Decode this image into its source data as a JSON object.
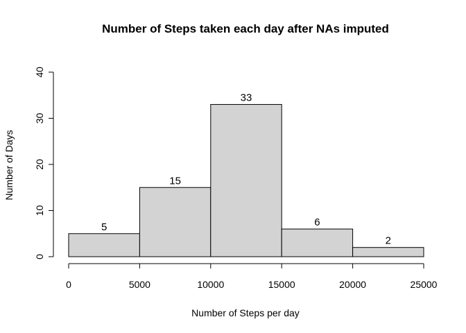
{
  "chart_data": {
    "type": "bar",
    "title": "Number of Steps taken each day after NAs imputed",
    "xlabel": "Number of Steps per day",
    "ylabel": "Number of Days",
    "bins": [
      [
        0,
        5000
      ],
      [
        5000,
        10000
      ],
      [
        10000,
        15000
      ],
      [
        15000,
        20000
      ],
      [
        20000,
        25000
      ]
    ],
    "values": [
      5,
      15,
      33,
      6,
      2
    ],
    "data_labels": [
      "5",
      "15",
      "33",
      "6",
      "2"
    ],
    "xlim": [
      0,
      25000
    ],
    "ylim": [
      0,
      40
    ],
    "x_ticks": [
      0,
      5000,
      10000,
      15000,
      20000,
      25000
    ],
    "x_tick_labels": [
      "0",
      "5000",
      "10000",
      "15000",
      "20000",
      "25000"
    ],
    "y_ticks": [
      0,
      10,
      20,
      30,
      40
    ],
    "y_tick_labels": [
      "0",
      "10",
      "20",
      "30",
      "40"
    ],
    "bar_color": "#d3d3d3",
    "grid": false
  }
}
